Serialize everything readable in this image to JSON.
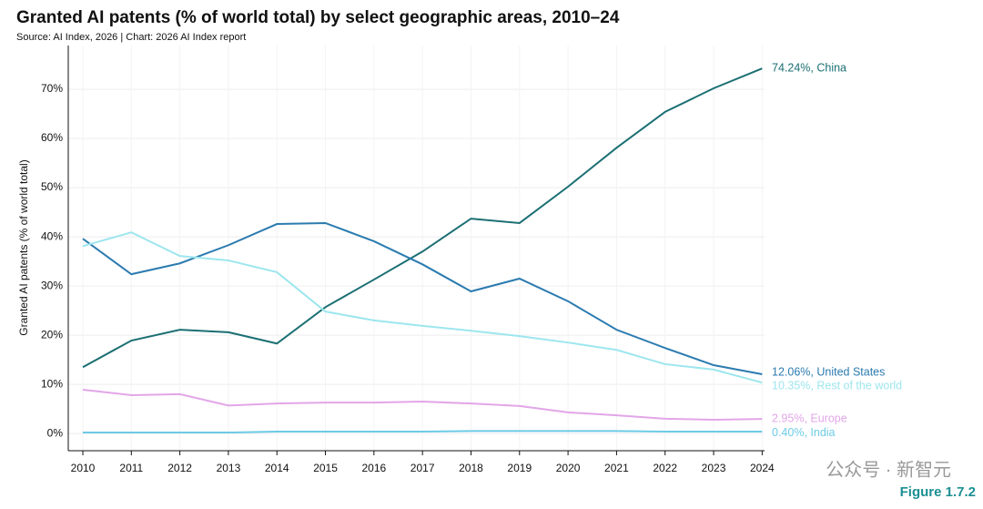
{
  "chart_data": {
    "type": "line",
    "title": "Granted AI patents (% of world total) by select geographic areas, 2010–24",
    "subtitle": "Source: AI Index, 2026 | Chart: 2026 AI Index report",
    "y_label": "Granted AI patents (% of world total)",
    "figure_label": "Figure 1.7.2",
    "watermark": "公众号 · 新智元",
    "x": [
      2010,
      2011,
      2012,
      2013,
      2014,
      2015,
      2016,
      2017,
      2018,
      2019,
      2020,
      2021,
      2022,
      2023,
      2024
    ],
    "xlim": [
      2009.7,
      2024.05
    ],
    "xticks": [
      2010,
      2011,
      2012,
      2013,
      2014,
      2015,
      2016,
      2017,
      2018,
      2019,
      2020,
      2021,
      2022,
      2023,
      2024
    ],
    "ylim": [
      -3.5,
      78.9
    ],
    "yticks": [
      {
        "value": 0,
        "label": "0%"
      },
      {
        "value": 10,
        "label": "10%"
      },
      {
        "value": 20,
        "label": "20%"
      },
      {
        "value": 30,
        "label": "30%"
      },
      {
        "value": 40,
        "label": "40%"
      },
      {
        "value": 50,
        "label": "50%"
      },
      {
        "value": 60,
        "label": "60%"
      },
      {
        "value": 70,
        "label": "70%"
      }
    ],
    "grid": true,
    "series": [
      {
        "name": "China",
        "color": "#1b6f73",
        "end_label": "74.24%, China",
        "values": [
          13.5,
          18.9,
          21.1,
          20.6,
          18.3,
          25.7,
          31.3,
          37.0,
          43.7,
          42.8,
          50.2,
          58.1,
          65.4,
          70.2,
          74.24
        ]
      },
      {
        "name": "United States",
        "color": "#2b7bb0",
        "end_label": "12.06%, United States",
        "values": [
          39.6,
          32.4,
          34.6,
          38.3,
          42.6,
          42.8,
          39.1,
          34.4,
          28.9,
          31.5,
          26.9,
          21.1,
          17.4,
          13.9,
          12.06
        ]
      },
      {
        "name": "Rest of the world",
        "color": "#9de6ee",
        "end_label": "10.35%, Rest of the world",
        "values": [
          38.1,
          40.9,
          36.1,
          35.2,
          32.8,
          24.8,
          23.0,
          21.9,
          20.9,
          19.8,
          18.5,
          17.0,
          14.1,
          13.0,
          10.35
        ]
      },
      {
        "name": "Europe",
        "color": "#e2a6e8",
        "end_label": "2.95%, Europe",
        "values": [
          8.9,
          7.8,
          8.0,
          5.7,
          6.1,
          6.3,
          6.3,
          6.5,
          6.1,
          5.6,
          4.3,
          3.7,
          3.0,
          2.8,
          2.95
        ]
      },
      {
        "name": "India",
        "color": "#6ccbe6",
        "end_label": "0.40%, India",
        "values": [
          0.2,
          0.2,
          0.2,
          0.2,
          0.4,
          0.4,
          0.4,
          0.4,
          0.5,
          0.5,
          0.5,
          0.5,
          0.4,
          0.4,
          0.4
        ]
      }
    ]
  }
}
